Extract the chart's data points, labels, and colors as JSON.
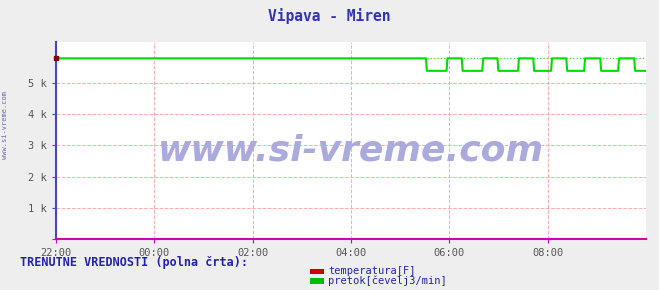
{
  "title": "Vipava - Miren",
  "title_color": "#3333bb",
  "title_fontsize": 10.5,
  "bg_color": "#eeeeee",
  "plot_bg_color": "#ffffff",
  "grid_color": "#ffaaaa",
  "grid_style": "--",
  "xlim": [
    0,
    660
  ],
  "ylim": [
    0,
    6300
  ],
  "yticks": [
    0,
    1000,
    2000,
    3000,
    4000,
    5000
  ],
  "ytick_labels": [
    "",
    "1 k",
    "2 k",
    "3 k",
    "4 k",
    "5 k"
  ],
  "xtick_positions": [
    0,
    110,
    220,
    330,
    440,
    550
  ],
  "xtick_labels": [
    "22:00",
    "00:00",
    "02:00",
    "04:00",
    "06:00",
    "08:00"
  ],
  "watermark_text": "www.si-vreme.com",
  "watermark_color": "#aaaadd",
  "watermark_fontsize": 26,
  "left_label_color": "#6666aa",
  "pretok_color": "#00dd00",
  "pretok_base": 5780,
  "pretok_drop": 5380,
  "temperatura_color": "#cc0000",
  "temperatura_value": 15,
  "spine_left_color": "#4444cc",
  "spine_bottom_color": "#cc00cc",
  "arrow_color": "#cc0000",
  "tick_color": "#555555",
  "legend_label1": "temperatura[F]",
  "legend_label2": "pretok[čevelj3/min]",
  "legend_color1": "#cc0000",
  "legend_color2": "#00bb00",
  "footer_text": "TRENUTNE VREDNOSTI (polna črta):",
  "footer_color": "#2222aa",
  "footer_fontsize": 8.5
}
